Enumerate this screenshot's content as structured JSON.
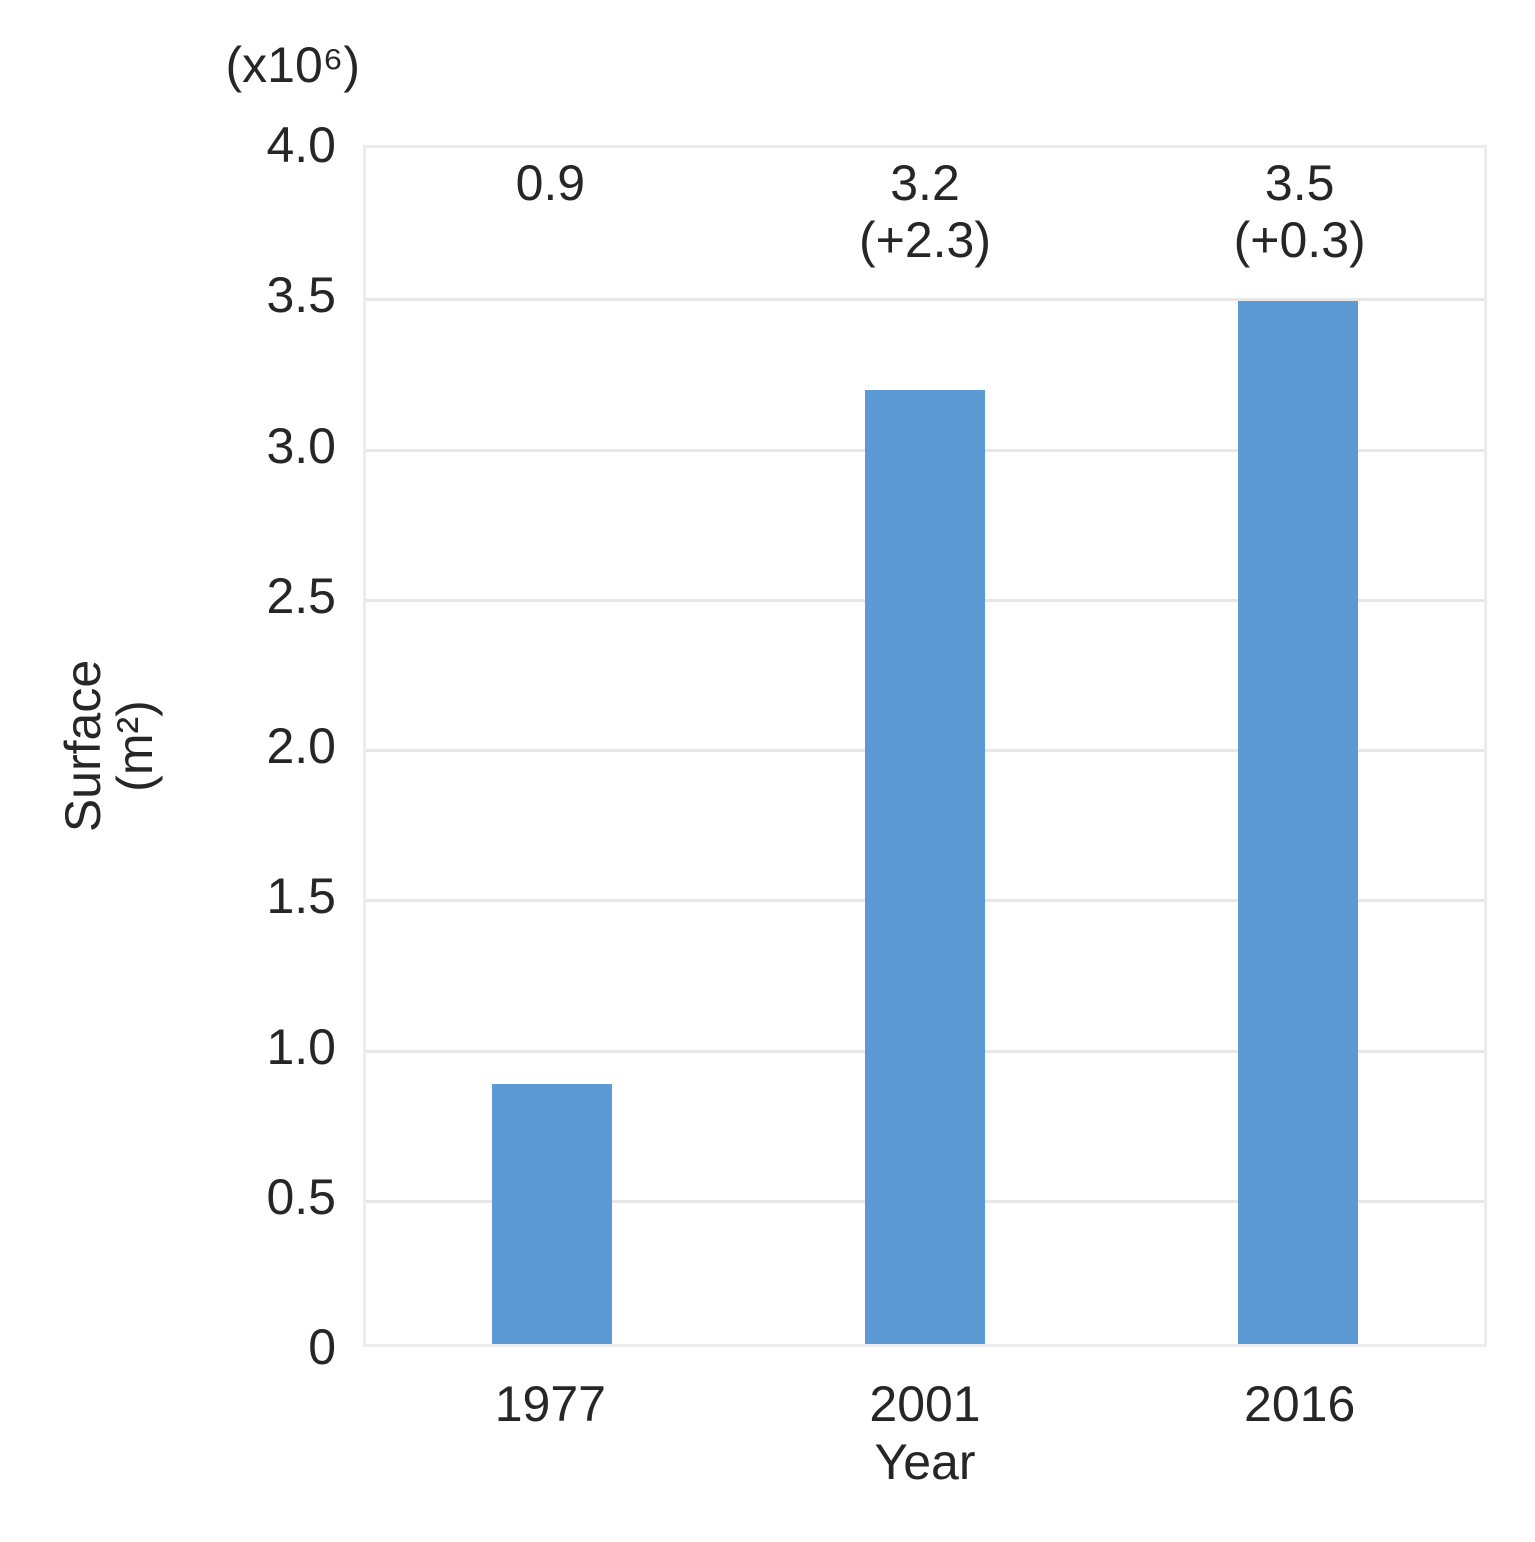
{
  "chart_data": {
    "type": "bar",
    "title": "",
    "unit_note": "(x10⁶)",
    "xlabel": "Year",
    "ylabel": "Surface (m²)",
    "ylabel_lines": [
      "Surface",
      "(m²)"
    ],
    "categories": [
      "1977",
      "2001",
      "2016"
    ],
    "values": [
      0.9,
      3.2,
      3.5
    ],
    "plotted_values": [
      0.87,
      3.19,
      3.49
    ],
    "bar_annotations": [
      [
        "0.9"
      ],
      [
        "3.2",
        "(+2.3)"
      ],
      [
        "3.5",
        "(+0.3)"
      ]
    ],
    "ylim": [
      0,
      4.0
    ],
    "ytick_values": [
      0,
      0.5,
      1.0,
      1.5,
      2.0,
      2.5,
      3.0,
      3.5,
      4.0
    ],
    "ytick_labels": [
      "0",
      "0.5",
      "1.0",
      "1.5",
      "2.0",
      "2.5",
      "3.0",
      "3.5",
      "4.0"
    ],
    "grid": "horizontal",
    "legend": false,
    "colors": {
      "bar": "#5B9AD5",
      "gridline": "#E7E7E7",
      "plot_border": "#ECECEC",
      "text": "#262626",
      "background": "#FFFFFF"
    }
  }
}
